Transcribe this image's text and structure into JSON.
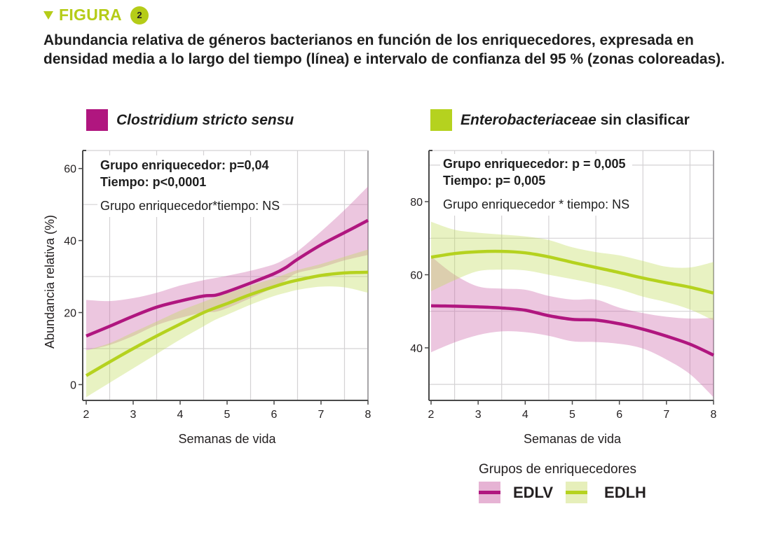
{
  "figure": {
    "label": "FIGURA",
    "number": "2",
    "caption": "Abundancia relativa de géneros bacterianos en función de los enriquecedores, expresada en densidad media a lo largo del tiempo (línea) e intervalo de confianza del 95 % (zonas coloreadas).",
    "accent_color": "#b5cc18"
  },
  "legend": {
    "title": "Grupos de enriquecedores",
    "items": [
      {
        "label": "EDLV",
        "line_color": "#b0167f",
        "band_color": "#e6b3d4"
      },
      {
        "label": "EDLH",
        "line_color": "#b5d21f",
        "band_color": "#e6efba"
      }
    ]
  },
  "chart_data": [
    {
      "type": "line",
      "title_italic": "Clostridium stricto sensu",
      "title_rest": "",
      "title_color": "#b0167f",
      "xlabel": "Semanas de vida",
      "ylabel": "Abundancia relativa (%)",
      "xlim": [
        2,
        8
      ],
      "ylim": [
        -4,
        65
      ],
      "xticks": [
        2,
        3,
        4,
        5,
        6,
        7,
        8
      ],
      "yticks": [
        0,
        20,
        40,
        60
      ],
      "grid": true,
      "stats": {
        "line1": "Grupo enriquecedor: p=0,04",
        "line2": "Tiempo: p<0,0001",
        "line3": "Grupo enriquecedor*tiempo: NS"
      },
      "x": [
        2,
        2.5,
        3,
        3.5,
        4,
        4.5,
        4.75,
        5,
        5.5,
        6,
        6.25,
        6.5,
        7,
        7.5,
        8
      ],
      "series": [
        {
          "name": "EDLV",
          "values": [
            13.5,
            16.2,
            19.0,
            21.5,
            23.2,
            24.6,
            24.8,
            25.8,
            28.2,
            30.8,
            32.5,
            34.8,
            38.8,
            42.2,
            45.6
          ],
          "ci_upper": [
            23.5,
            23.2,
            24.0,
            25.5,
            27.5,
            29.0,
            29.6,
            30.2,
            31.6,
            33.4,
            35.0,
            37.0,
            42.5,
            48.5,
            55.0
          ],
          "ci_lower": [
            9.5,
            11.0,
            13.5,
            16.5,
            18.5,
            20.0,
            20.2,
            21.2,
            24.0,
            27.0,
            29.0,
            31.0,
            32.5,
            34.5,
            36.0
          ]
        },
        {
          "name": "EDLH",
          "values": [
            2.5,
            6.3,
            10.0,
            13.5,
            16.8,
            20.0,
            21.3,
            22.5,
            25.0,
            27.2,
            28.2,
            29.0,
            30.3,
            31.0,
            31.2
          ],
          "ci_upper": [
            9.5,
            11.5,
            14.5,
            17.5,
            20.5,
            23.0,
            24.2,
            25.3,
            27.5,
            29.5,
            30.7,
            31.8,
            33.5,
            35.5,
            37.5
          ],
          "ci_lower": [
            -3.5,
            0.5,
            4.5,
            8.5,
            12.5,
            16.2,
            18.0,
            19.4,
            22.2,
            24.6,
            25.5,
            26.3,
            27.2,
            27.0,
            25.5
          ]
        }
      ]
    },
    {
      "type": "line",
      "title_italic": "Enterobacteriaceae",
      "title_rest": " sin clasificar",
      "title_color": "#b5d21f",
      "xlabel": "Semanas de vida",
      "ylabel": "",
      "xlim": [
        2,
        8
      ],
      "ylim": [
        26,
        94
      ],
      "xticks": [
        2,
        3,
        4,
        5,
        6,
        7,
        8
      ],
      "yticks": [
        40,
        60,
        80
      ],
      "grid": true,
      "stats": {
        "line1": "Grupo enriquecedor: p = 0,005",
        "line2": "Tiempo: p= 0,005",
        "line3": "Grupo enriquecedor * tiempo: NS"
      },
      "x": [
        2,
        2.5,
        3,
        3.5,
        4,
        4.5,
        5,
        5.5,
        6,
        6.5,
        7,
        7.5,
        8
      ],
      "series": [
        {
          "name": "EDLV",
          "values": [
            51.5,
            51.4,
            51.2,
            50.9,
            50.3,
            48.8,
            47.8,
            47.6,
            46.6,
            45.1,
            43.2,
            41.0,
            38.0
          ],
          "ci_upper": [
            65.0,
            60.0,
            56.8,
            56.2,
            55.9,
            54.2,
            53.2,
            53.2,
            51.0,
            49.5,
            48.5,
            48.0,
            48.2
          ],
          "ci_lower": [
            38.8,
            41.5,
            43.5,
            44.5,
            44.3,
            43.3,
            41.8,
            41.6,
            41.1,
            39.8,
            36.8,
            32.8,
            26.5
          ]
        },
        {
          "name": "EDLH",
          "values": [
            64.8,
            65.8,
            66.3,
            66.4,
            66.0,
            64.9,
            63.4,
            62.0,
            60.6,
            59.1,
            57.8,
            56.6,
            55.0
          ],
          "ci_upper": [
            74.5,
            72.3,
            71.5,
            71.0,
            70.5,
            69.5,
            67.5,
            66.2,
            65.3,
            63.8,
            62.2,
            62.0,
            63.5
          ],
          "ci_lower": [
            55.5,
            58.5,
            61.0,
            61.4,
            61.2,
            60.0,
            58.8,
            57.5,
            56.0,
            54.0,
            52.5,
            50.5,
            47.5
          ]
        }
      ]
    }
  ]
}
